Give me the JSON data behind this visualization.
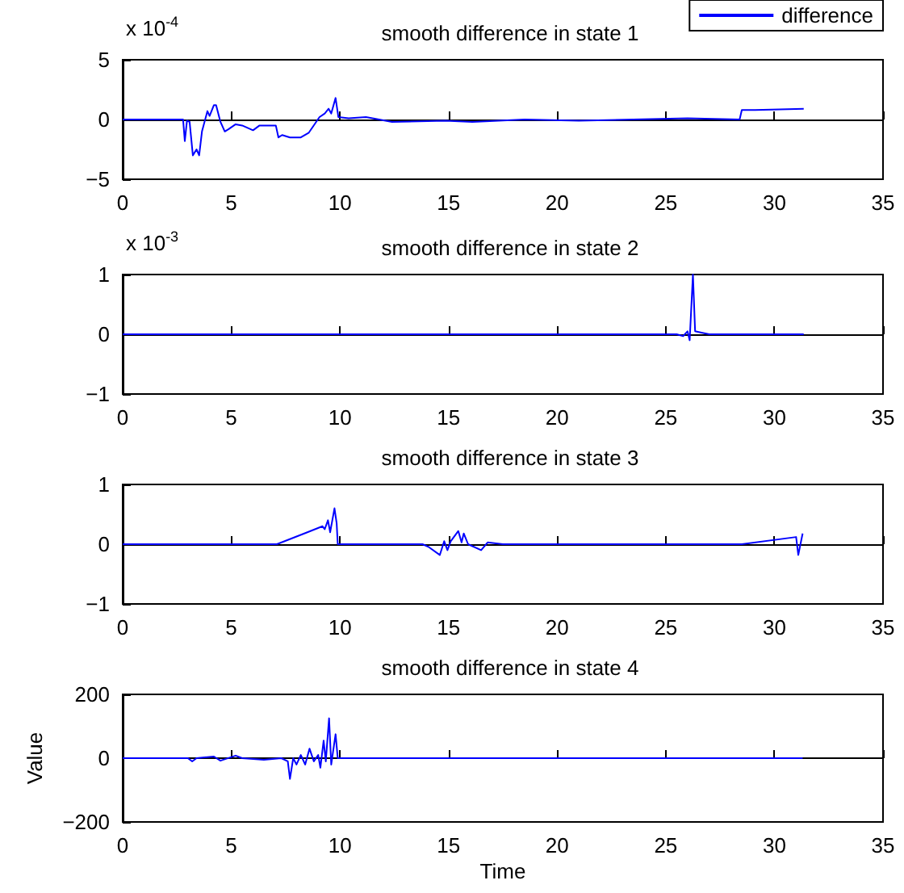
{
  "chart_data": [
    {
      "type": "line",
      "title": "smooth difference in state 1",
      "annotations": [
        "x 10$^{-4}$"
      ],
      "legend": "top right",
      "x": [
        0,
        2.78,
        2.86,
        2.96,
        3.08,
        3.23,
        3.4,
        3.52,
        3.65,
        3.9,
        4.0,
        4.2,
        4.3,
        4.5,
        4.7,
        4.88,
        5.2,
        5.5,
        6.0,
        6.3,
        6.72,
        7.05,
        7.17,
        7.34,
        7.7,
        8.2,
        8.57,
        9.06,
        9.3,
        9.48,
        9.6,
        9.8,
        9.93,
        10.4,
        11.2,
        12.4,
        14.85,
        16.1,
        18.5,
        21,
        23.5,
        26,
        28.4,
        28.5,
        29.1,
        31.35
      ],
      "series": [
        {
          "name": "difference",
          "color": "#0000ff",
          "values": [
            0,
            0,
            -1.8,
            -0.1,
            -0.2,
            -3,
            -2.5,
            -3,
            -1,
            0.7,
            0.3,
            1.2,
            1.2,
            -0.2,
            -1,
            -0.8,
            -0.4,
            -0.5,
            -0.9,
            -0.5,
            -0.5,
            -0.5,
            -1.5,
            -1.3,
            -1.5,
            -1.5,
            -1.1,
            0.2,
            0.5,
            0.9,
            0.5,
            1.8,
            0.2,
            0.1,
            0.2,
            -0.2,
            -0.1,
            -0.2,
            0,
            -0.1,
            0,
            0.1,
            0,
            0.8,
            0.8,
            0.9
          ]
        }
      ],
      "xlim": [
        0,
        35
      ],
      "xticks": [
        0,
        5,
        10,
        15,
        20,
        25,
        30,
        35
      ],
      "ylim": [
        -5,
        5
      ],
      "yticks": [
        {
          "value": -5,
          "label": "−5"
        },
        0,
        5
      ]
    },
    {
      "type": "line",
      "title": "smooth difference in state 2",
      "annotations": [
        "x 10$^{-3}$"
      ],
      "x": [
        0,
        25.5,
        25.8,
        26.0,
        26.1,
        26.25,
        26.35,
        26.6,
        27,
        31.35
      ],
      "series": [
        {
          "color": "#0000ff",
          "values": [
            0,
            0,
            -0.03,
            0.05,
            -0.1,
            1,
            0.05,
            0.03,
            0,
            0
          ]
        }
      ],
      "xlim": [
        0,
        35
      ],
      "xticks": [
        0,
        5,
        10,
        15,
        20,
        25,
        30,
        35
      ],
      "ylim": [
        -1,
        1
      ],
      "yticks": [
        {
          "value": -1,
          "label": "−1"
        },
        0,
        1
      ]
    },
    {
      "type": "line",
      "title": "smooth difference in state 3",
      "x": [
        0,
        7.1,
        8.5,
        9.2,
        9.3,
        9.45,
        9.55,
        9.75,
        9.85,
        9.9,
        13.8,
        14.1,
        14.6,
        14.8,
        14.95,
        15.1,
        15.45,
        15.6,
        15.7,
        15.9,
        16.5,
        16.8,
        17.5,
        28.5,
        31.0,
        31.1,
        31.3
      ],
      "series": [
        {
          "color": "#0000ff",
          "values": [
            0,
            0,
            0.2,
            0.3,
            0.25,
            0.4,
            0.2,
            0.6,
            0.35,
            0,
            0,
            -0.05,
            -0.18,
            0.05,
            -0.1,
            0.05,
            0.22,
            0.03,
            0.18,
            0,
            -0.1,
            0.03,
            0,
            0,
            0.12,
            -0.18,
            0.18
          ]
        }
      ],
      "xlim": [
        0,
        35
      ],
      "xticks": [
        0,
        5,
        10,
        15,
        20,
        25,
        30,
        35
      ],
      "ylim": [
        -1,
        1
      ],
      "yticks": [
        {
          "value": -1,
          "label": "−1"
        },
        0,
        1
      ]
    },
    {
      "type": "line",
      "title": "smooth difference in state 4",
      "xlabel": "Time",
      "ylabel": "Value",
      "x": [
        0,
        3.0,
        3.2,
        3.4,
        4.2,
        4.5,
        5.2,
        5.5,
        6.5,
        7.3,
        7.6,
        7.7,
        7.85,
        8.0,
        8.2,
        8.4,
        8.6,
        8.8,
        9.0,
        9.1,
        9.25,
        9.35,
        9.5,
        9.6,
        9.8,
        9.9,
        31.3
      ],
      "series": [
        {
          "color": "#0000ff",
          "values": [
            0,
            0,
            -10,
            0,
            5,
            -8,
            8,
            0,
            -5,
            0,
            -10,
            -65,
            0,
            -20,
            10,
            -20,
            30,
            -10,
            10,
            -30,
            55,
            -10,
            125,
            -20,
            75,
            0,
            0
          ]
        }
      ],
      "xlim": [
        0,
        35
      ],
      "xticks": [
        0,
        5,
        10,
        15,
        20,
        25,
        30,
        35
      ],
      "ylim": [
        -200,
        200
      ],
      "yticks": [
        {
          "value": -200,
          "label": "−200"
        },
        0,
        200
      ]
    }
  ]
}
